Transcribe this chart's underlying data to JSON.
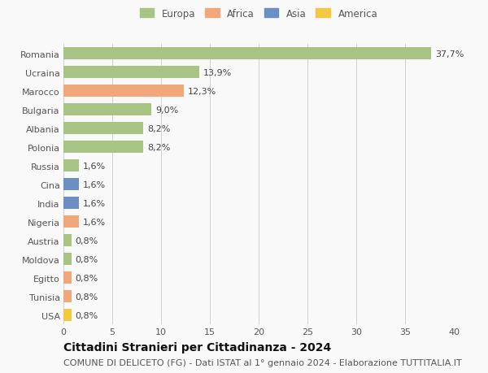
{
  "countries": [
    "Romania",
    "Ucraina",
    "Marocco",
    "Bulgaria",
    "Albania",
    "Polonia",
    "Russia",
    "Cina",
    "India",
    "Nigeria",
    "Austria",
    "Moldova",
    "Egitto",
    "Tunisia",
    "USA"
  ],
  "values": [
    37.7,
    13.9,
    12.3,
    9.0,
    8.2,
    8.2,
    1.6,
    1.6,
    1.6,
    1.6,
    0.8,
    0.8,
    0.8,
    0.8,
    0.8
  ],
  "labels": [
    "37,7%",
    "13,9%",
    "12,3%",
    "9,0%",
    "8,2%",
    "8,2%",
    "1,6%",
    "1,6%",
    "1,6%",
    "1,6%",
    "0,8%",
    "0,8%",
    "0,8%",
    "0,8%",
    "0,8%"
  ],
  "colors": [
    "#a8c484",
    "#a8c484",
    "#f0a87a",
    "#a8c484",
    "#a8c484",
    "#a8c484",
    "#a8c484",
    "#6b8fc2",
    "#6b8fc2",
    "#f0a87a",
    "#a8c484",
    "#a8c484",
    "#f0a87a",
    "#f0a87a",
    "#f5c842"
  ],
  "legend_labels": [
    "Europa",
    "Africa",
    "Asia",
    "America"
  ],
  "legend_colors": [
    "#a8c484",
    "#f0a87a",
    "#6b8fc2",
    "#f5c842"
  ],
  "xlim": [
    0,
    40
  ],
  "xticks": [
    0,
    5,
    10,
    15,
    20,
    25,
    30,
    35,
    40
  ],
  "title": "Cittadini Stranieri per Cittadinanza - 2024",
  "subtitle": "COMUNE DI DELICETO (FG) - Dati ISTAT al 1° gennaio 2024 - Elaborazione TUTTITALIA.IT",
  "bg_color": "#f9f9f9",
  "grid_color": "#d0d0d0",
  "bar_height": 0.65,
  "title_fontsize": 10,
  "subtitle_fontsize": 8,
  "label_fontsize": 8,
  "tick_fontsize": 8,
  "legend_fontsize": 8.5
}
